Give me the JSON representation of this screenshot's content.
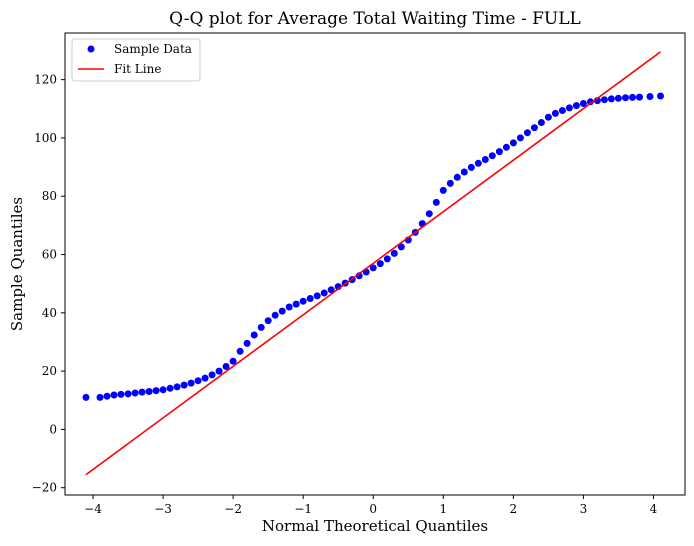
{
  "chart_data": {
    "type": "scatter",
    "title": "Q-Q plot for Average Total Waiting Time - FULL",
    "xlabel": "Normal Theoretical Quantiles",
    "ylabel": "Sample Quantiles",
    "xlim": [
      -4.4,
      4.45
    ],
    "ylim": [
      -22.5,
      136
    ],
    "xticks": [
      -4,
      -3,
      -2,
      -1,
      0,
      1,
      2,
      3,
      4
    ],
    "yticks": [
      -20,
      0,
      20,
      40,
      60,
      80,
      100,
      120
    ],
    "grid": false,
    "legend": {
      "position": "top-left"
    },
    "series": [
      {
        "name": "Sample Data",
        "kind": "scatter",
        "color": "#0000ff",
        "x": [
          -4.1,
          -3.9,
          -3.8,
          -3.7,
          -3.6,
          -3.5,
          -3.4,
          -3.3,
          -3.2,
          -3.1,
          -3.0,
          -2.9,
          -2.8,
          -2.7,
          -2.6,
          -2.5,
          -2.4,
          -2.3,
          -2.2,
          -2.1,
          -2.0,
          -1.9,
          -1.8,
          -1.7,
          -1.6,
          -1.5,
          -1.4,
          -1.3,
          -1.2,
          -1.1,
          -1.0,
          -0.9,
          -0.8,
          -0.7,
          -0.6,
          -0.5,
          -0.4,
          -0.3,
          -0.2,
          -0.1,
          0.0,
          0.1,
          0.2,
          0.3,
          0.4,
          0.5,
          0.6,
          0.7,
          0.8,
          0.9,
          1.0,
          1.1,
          1.2,
          1.3,
          1.4,
          1.5,
          1.6,
          1.7,
          1.8,
          1.9,
          2.0,
          2.1,
          2.2,
          2.3,
          2.4,
          2.5,
          2.6,
          2.7,
          2.8,
          2.9,
          3.0,
          3.1,
          3.2,
          3.3,
          3.4,
          3.5,
          3.6,
          3.7,
          3.8,
          3.95,
          4.1
        ],
        "y": [
          11.0,
          11.0,
          11.4,
          11.8,
          12.0,
          12.2,
          12.5,
          12.8,
          13.0,
          13.3,
          13.6,
          14.1,
          14.6,
          15.2,
          15.9,
          16.7,
          17.6,
          18.7,
          20.0,
          21.6,
          23.4,
          26.8,
          29.5,
          32.4,
          35.0,
          37.3,
          39.2,
          40.6,
          42.0,
          43.0,
          44.0,
          44.9,
          45.8,
          46.8,
          47.9,
          49.0,
          50.2,
          51.4,
          52.7,
          54.0,
          55.4,
          56.9,
          58.5,
          60.4,
          62.6,
          65.0,
          67.6,
          70.6,
          74.0,
          77.9,
          82.0,
          84.4,
          86.5,
          88.3,
          89.9,
          91.3,
          92.6,
          93.9,
          95.3,
          96.8,
          98.3,
          100.0,
          101.8,
          103.5,
          105.3,
          107.1,
          108.4,
          109.4,
          110.3,
          111.1,
          111.8,
          112.4,
          112.8,
          113.1,
          113.4,
          113.6,
          113.8,
          113.9,
          114.0,
          114.2,
          114.4
        ]
      },
      {
        "name": "Fit Line",
        "kind": "line",
        "color": "#ff0000",
        "x": [
          -4.1,
          4.1
        ],
        "y": [
          -15.5,
          129.5
        ]
      }
    ]
  }
}
